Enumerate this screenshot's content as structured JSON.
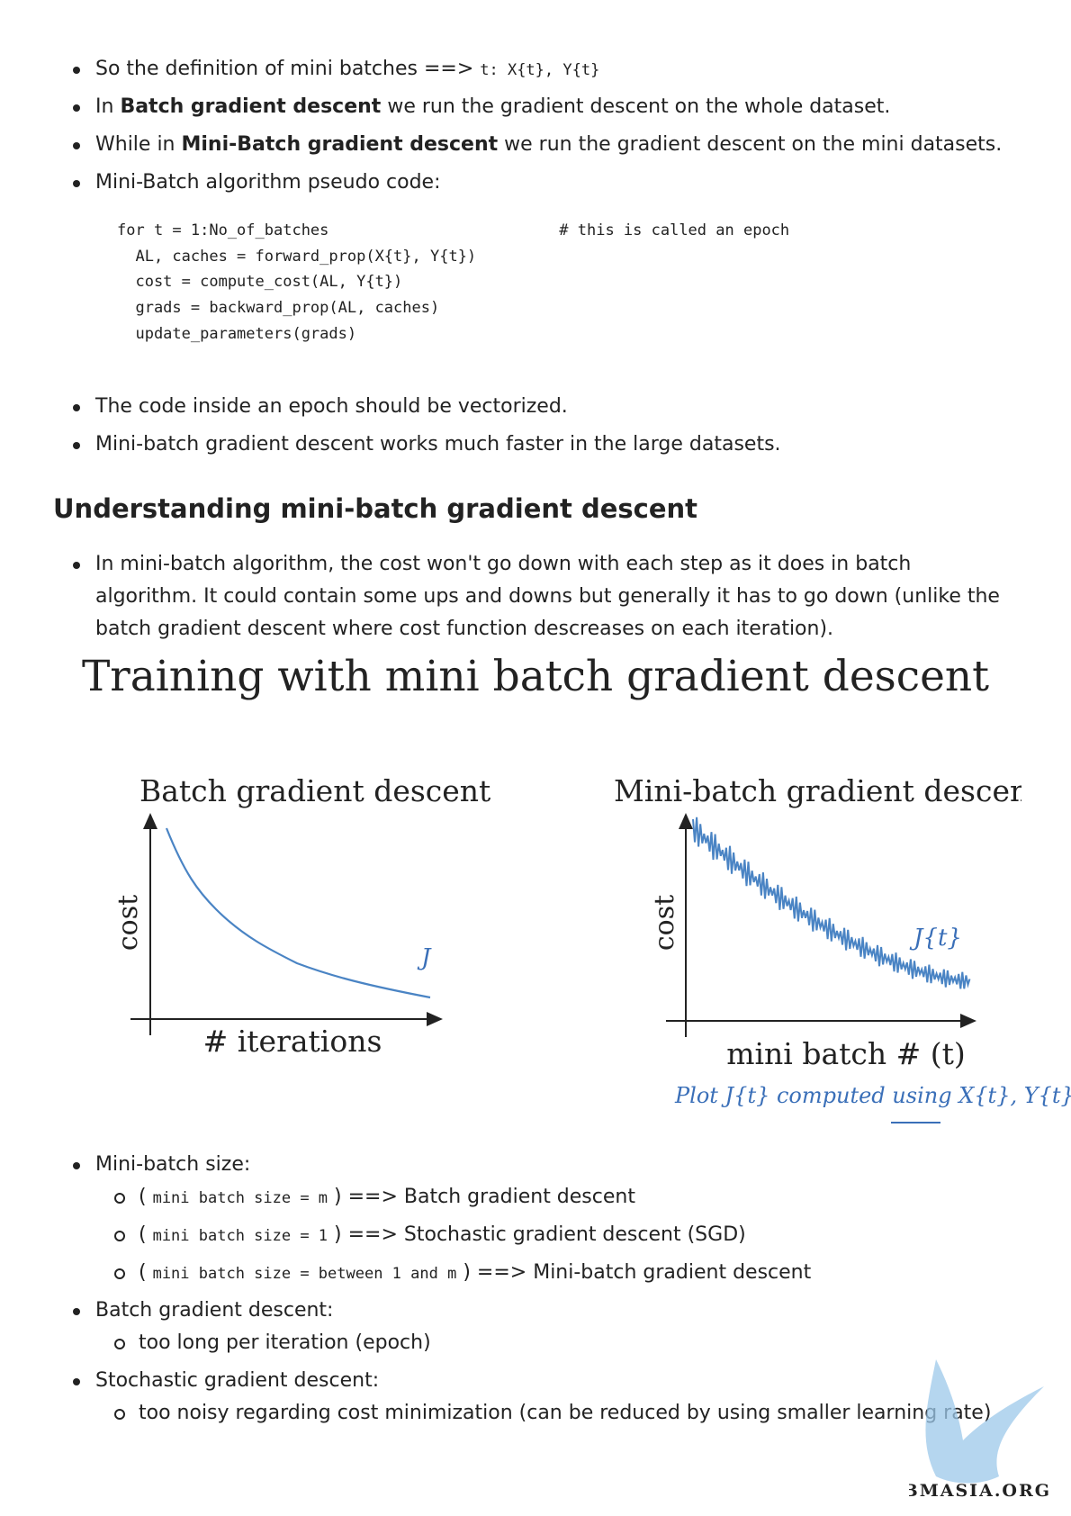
{
  "top_list": [
    {
      "runs": [
        {
          "text": "So the definition of mini batches ==> ",
          "style": "plain"
        },
        {
          "text": "t: X{t}, Y{t}",
          "style": "code"
        }
      ]
    },
    {
      "runs": [
        {
          "text": "In ",
          "style": "plain"
        },
        {
          "text": "Batch gradient descent",
          "style": "bold"
        },
        {
          "text": " we run the gradient descent on the whole dataset.",
          "style": "plain"
        }
      ]
    },
    {
      "runs": [
        {
          "text": "While in ",
          "style": "plain"
        },
        {
          "text": "Mini-Batch gradient descent",
          "style": "bold"
        },
        {
          "text": " we run the gradient descent on the mini datasets.",
          "style": "plain"
        }
      ]
    },
    {
      "runs": [
        {
          "text": "Mini-Batch algorithm pseudo code:",
          "style": "plain"
        }
      ]
    }
  ],
  "code_block": [
    "for t = 1:No_of_batches                         # this is called an epoch",
    "  AL, caches = forward_prop(X{t}, Y{t})",
    "  cost = compute_cost(AL, Y{t})",
    "  grads = backward_prop(AL, caches)",
    "  update_parameters(grads)"
  ],
  "mid_list": [
    {
      "runs": [
        {
          "text": "The code inside an epoch should be vectorized.",
          "style": "plain"
        }
      ]
    },
    {
      "runs": [
        {
          "text": "Mini-batch gradient descent works much faster in the large datasets.",
          "style": "plain"
        }
      ]
    }
  ],
  "section_heading": "Understanding mini-batch gradient descent",
  "section_list": [
    {
      "runs": [
        {
          "text": "In mini-batch algorithm, the cost won't go down with each step as it does in batch algorithm. It could contain some ups and downs but generally it has to go down (unlike the batch gradient descent where cost function descreases on each iteration).",
          "style": "plain"
        }
      ]
    }
  ],
  "figure": {
    "title": "Training with mini batch gradient descent",
    "left": {
      "title": "Batch gradient descent",
      "y_label": "cost",
      "x_label": "# iterations",
      "curve_label": "J"
    },
    "right": {
      "title": "Mini-batch gradient descent",
      "y_label": "cost",
      "x_label": "mini batch # (t)",
      "curve_label": "J{t}",
      "note": "Plot J{t} computed using X{t}, Y{t}"
    }
  },
  "bottom_list": [
    {
      "runs": [
        {
          "text": "Mini-batch size:",
          "style": "plain"
        }
      ],
      "sub": [
        {
          "runs": [
            {
              "text": "( ",
              "style": "plain"
            },
            {
              "text": "mini batch size = m",
              "style": "code"
            },
            {
              "text": " ) ==> Batch gradient descent",
              "style": "plain"
            }
          ]
        },
        {
          "runs": [
            {
              "text": "( ",
              "style": "plain"
            },
            {
              "text": "mini batch size = 1",
              "style": "code"
            },
            {
              "text": " ) ==> Stochastic gradient descent (SGD)",
              "style": "plain"
            }
          ]
        },
        {
          "runs": [
            {
              "text": "( ",
              "style": "plain"
            },
            {
              "text": "mini batch size = between 1 and m",
              "style": "code"
            },
            {
              "text": " ) ==> Mini-batch gradient descent",
              "style": "plain"
            }
          ]
        }
      ]
    },
    {
      "runs": [
        {
          "text": "Batch gradient descent:",
          "style": "plain"
        }
      ],
      "sub": [
        {
          "runs": [
            {
              "text": "too long per iteration (epoch)",
              "style": "plain"
            }
          ]
        }
      ]
    },
    {
      "runs": [
        {
          "text": "Stochastic gradient descent:",
          "style": "plain"
        }
      ],
      "sub": [
        {
          "runs": [
            {
              "text": "too noisy regarding cost minimization (can be reduced by using smaller learning rate)",
              "style": "plain"
            }
          ]
        }
      ]
    }
  ],
  "watermark": "ABMASIA.ORG"
}
